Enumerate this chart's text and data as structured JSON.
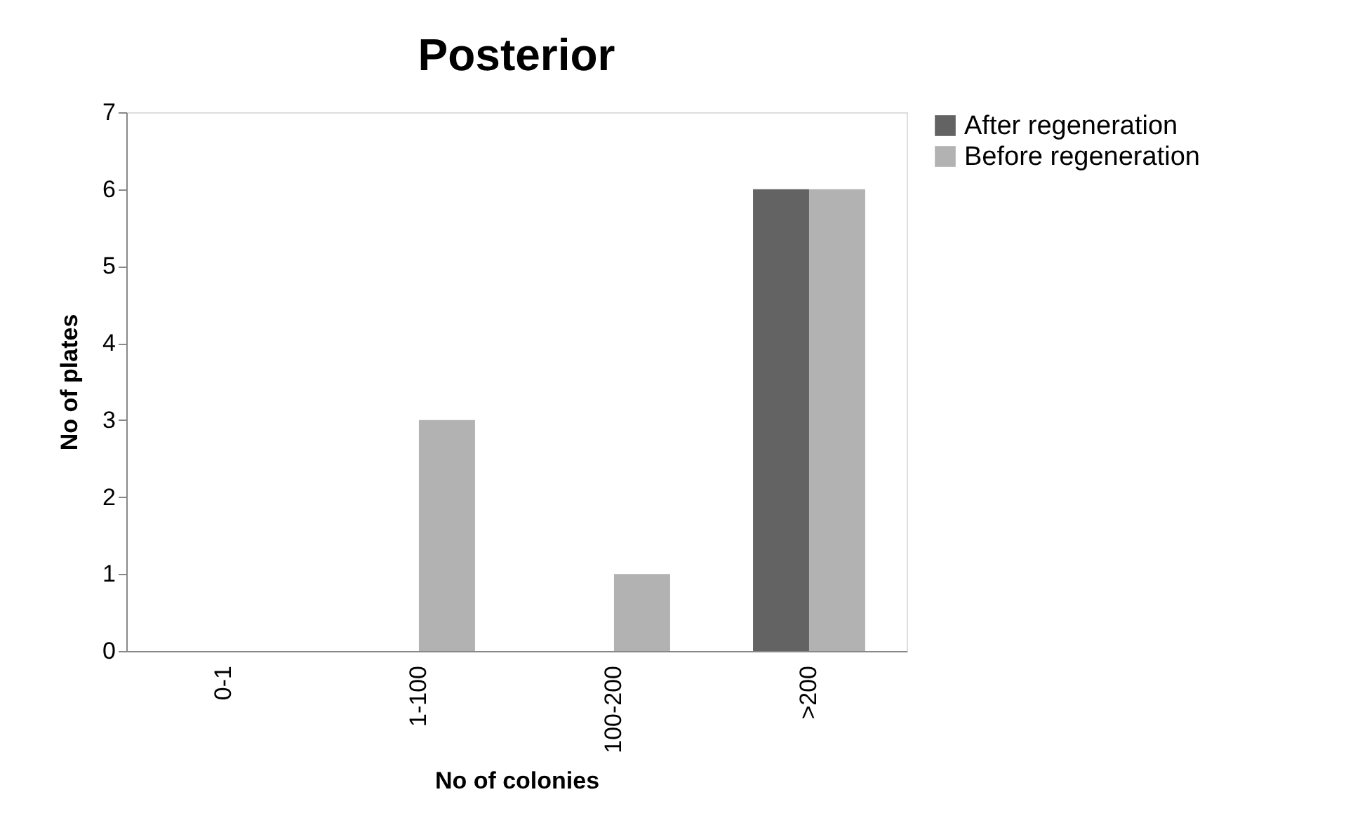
{
  "chart_data": {
    "type": "bar",
    "title": "Posterior",
    "xlabel": "No of colonies",
    "ylabel": "No of plates",
    "categories": [
      "0-1",
      "1-100",
      "100-200",
      ">200"
    ],
    "series": [
      {
        "name": "After regeneration",
        "color": "#636363",
        "values": [
          0,
          0,
          0,
          6
        ]
      },
      {
        "name": "Before regeneration",
        "color": "#b2b2b2",
        "values": [
          0,
          3,
          1,
          6
        ]
      }
    ],
    "ylim": [
      0,
      7
    ],
    "yticks": [
      0,
      1,
      2,
      3,
      4,
      5,
      6,
      7
    ],
    "grid": false,
    "legend": "right"
  }
}
